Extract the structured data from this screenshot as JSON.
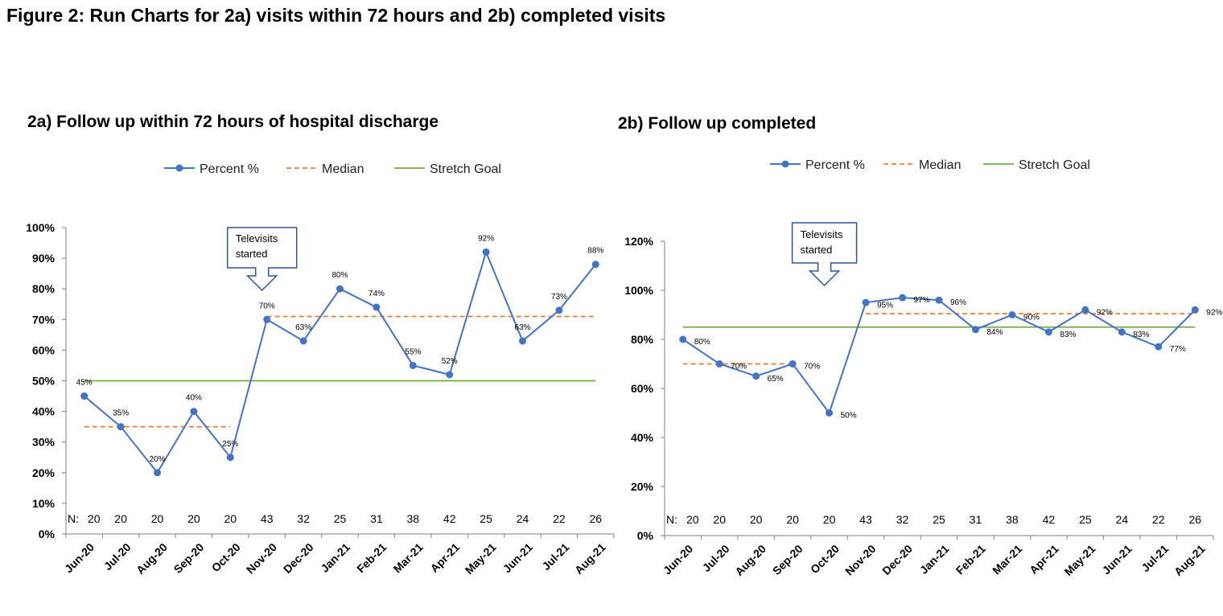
{
  "figure_title": "Figure 2: Run Charts for 2a) visits within 72 hours and 2b) completed visits",
  "chart_data": [
    {
      "type": "line",
      "title": "2a) Follow up within 72 hours of hospital discharge",
      "categories": [
        "Jun-20",
        "Jul-20",
        "Aug-20",
        "Sep-20",
        "Oct-20",
        "Nov-20",
        "Dec-20",
        "Jan-21",
        "Feb-21",
        "Mar-21",
        "Apr-21",
        "May-21",
        "Jun-21",
        "Jul-21",
        "Aug-21"
      ],
      "n_prefix": "N:",
      "n_values": [
        "20",
        "20",
        "20",
        "20",
        "20",
        "43",
        "32",
        "25",
        "31",
        "38",
        "42",
        "25",
        "24",
        "22",
        "26"
      ],
      "series": [
        {
          "name": "Percent %",
          "color": "#4472C4",
          "values": [
            45,
            35,
            20,
            40,
            25,
            70,
            63,
            80,
            74,
            55,
            52,
            92,
            63,
            73,
            88
          ],
          "labels": [
            "45%",
            "35%",
            "20%",
            "40%",
            "25%",
            "70%",
            "63%",
            "80%",
            "74%",
            "55%",
            "52%",
            "92%",
            "63%",
            "73%",
            "88%"
          ]
        },
        {
          "name": "Median",
          "color": "#ED7D31",
          "dashed": true,
          "segments": [
            {
              "from": "Jun-20",
              "to": "Oct-20",
              "value": 35
            },
            {
              "from": "Nov-20",
              "to": "Aug-21",
              "value": 71
            }
          ]
        },
        {
          "name": "Stretch Goal",
          "color": "#70AD47",
          "value": 50
        }
      ],
      "ylim": [
        0,
        100
      ],
      "yticks": [
        0,
        10,
        20,
        30,
        40,
        50,
        60,
        70,
        80,
        90,
        100
      ],
      "ytick_labels": [
        "0%",
        "10%",
        "20%",
        "30%",
        "40%",
        "50%",
        "60%",
        "70%",
        "80%",
        "90%",
        "100%"
      ],
      "annotation": {
        "text": [
          "Televisits",
          "started"
        ],
        "at": "Nov-20"
      },
      "legend_position": "top"
    },
    {
      "type": "line",
      "title": "2b) Follow up completed",
      "categories": [
        "Jun-20",
        "Jul-20",
        "Aug-20",
        "Sep-20",
        "Oct-20",
        "Nov-20",
        "Dec-20",
        "Jan-21",
        "Feb-21",
        "Mar-21",
        "Apr-21",
        "May-21",
        "Jun-21",
        "Jul-21",
        "Aug-21"
      ],
      "n_prefix": "N:",
      "n_values": [
        "20",
        "20",
        "20",
        "20",
        "20",
        "43",
        "32",
        "25",
        "31",
        "38",
        "42",
        "25",
        "24",
        "22",
        "26"
      ],
      "series": [
        {
          "name": "Percent %",
          "color": "#4472C4",
          "values": [
            80,
            70,
            65,
            70,
            50,
            95,
            97,
            96,
            84,
            90,
            83,
            92,
            83,
            77,
            92
          ],
          "labels": [
            "80%",
            "70%",
            "65%",
            "70%",
            "50%",
            "95%",
            "97%",
            "96%",
            "84%",
            "90%",
            "83%",
            "92%",
            "83%",
            "77%",
            "92%"
          ]
        },
        {
          "name": "Median",
          "color": "#ED7D31",
          "dashed": true,
          "segments": [
            {
              "from": "Jun-20",
              "to": "Sep-20",
              "value": 70
            },
            {
              "from": "Nov-20",
              "to": "Aug-21",
              "value": 90.5
            }
          ]
        },
        {
          "name": "Stretch Goal",
          "color": "#70AD47",
          "value": 85
        }
      ],
      "ylim": [
        0,
        120
      ],
      "yticks": [
        0,
        20,
        40,
        60,
        80,
        100,
        120
      ],
      "ytick_labels": [
        "0%",
        "20%",
        "40%",
        "60%",
        "80%",
        "100%",
        "120%"
      ],
      "annotation": {
        "text": [
          "Televisits",
          "started"
        ],
        "at": "Oct-20"
      },
      "legend_position": "top"
    }
  ]
}
